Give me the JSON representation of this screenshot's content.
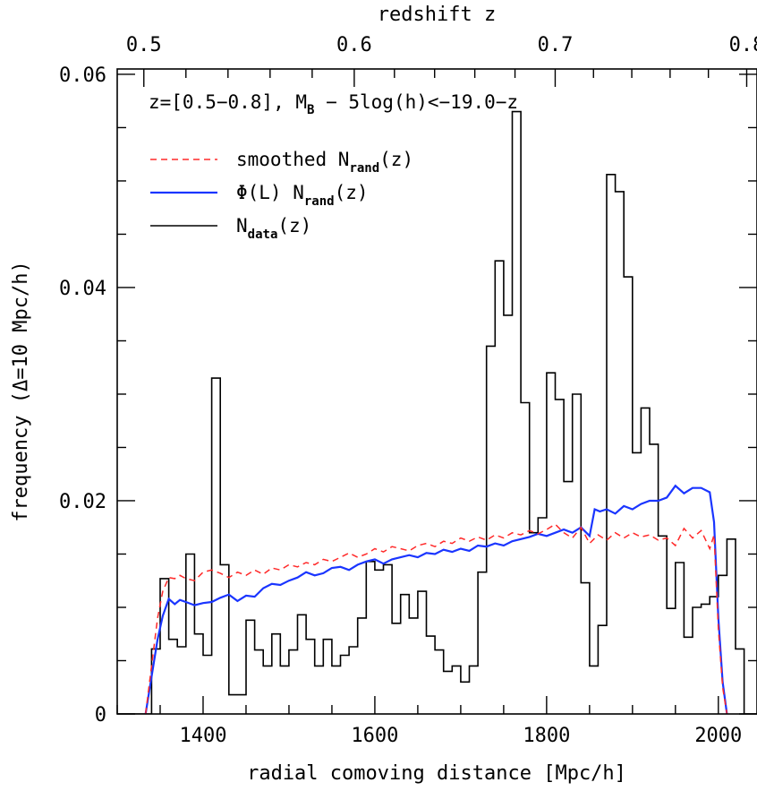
{
  "chart_data": {
    "type": "line",
    "xlabel": "radial comoving distance [Mpc/h]",
    "ylabel": "frequency (Δ=10 Mpc/h)",
    "top_xlabel": "redshift z",
    "xlim": [
      1300,
      2045
    ],
    "ylim": [
      0,
      0.0605
    ],
    "x_ticks": [
      1400,
      1600,
      1800,
      2000
    ],
    "y_ticks": [
      0,
      0.02,
      0.04,
      0.06
    ],
    "y_tick_labels": [
      "0",
      "0.02",
      "0.04",
      "0.06"
    ],
    "top_ticks": [
      {
        "z": 0.5,
        "d": 1331,
        "label": "0.5"
      },
      {
        "z": 0.6,
        "d": 1576,
        "label": "0.6"
      },
      {
        "z": 0.7,
        "d": 1810,
        "label": "0.7"
      },
      {
        "z": 0.8,
        "d": 2033,
        "label": "0.8"
      }
    ],
    "annotation": {
      "part1": "z=[0.5−0.8], M",
      "part1_sub": "B",
      "part2": " − 5log(h)<−19.0−z"
    },
    "legend": [
      {
        "text": "smoothed N",
        "sub": "rand",
        "suffix": "(z)",
        "color": "#ff2a2a",
        "style": "dashed"
      },
      {
        "text": "Φ(L) N",
        "sub": "rand",
        "suffix": "(z)",
        "color": "#1a35ff",
        "style": "solid"
      },
      {
        "text": "N",
        "sub": "data",
        "suffix": "(z)",
        "color": "#000000",
        "style": "solid"
      }
    ],
    "series": [
      {
        "id": "ndata",
        "kind": "step",
        "color": "#000000",
        "bin_start": 1330,
        "bin_width": 10,
        "values": [
          0.0,
          0.0061,
          0.0127,
          0.007,
          0.0063,
          0.015,
          0.0075,
          0.0055,
          0.0315,
          0.014,
          0.0018,
          0.0018,
          0.0088,
          0.006,
          0.0045,
          0.0075,
          0.0045,
          0.006,
          0.0093,
          0.007,
          0.0045,
          0.007,
          0.0045,
          0.0055,
          0.0063,
          0.009,
          0.0143,
          0.0135,
          0.014,
          0.0085,
          0.0112,
          0.009,
          0.0115,
          0.0073,
          0.006,
          0.004,
          0.0045,
          0.003,
          0.0045,
          0.0133,
          0.0345,
          0.0425,
          0.0374,
          0.0565,
          0.0292,
          0.017,
          0.0184,
          0.032,
          0.0295,
          0.0218,
          0.03,
          0.0123,
          0.0045,
          0.0083,
          0.0506,
          0.049,
          0.041,
          0.0245,
          0.0287,
          0.0253,
          0.0167,
          0.0099,
          0.0142,
          0.0072,
          0.01,
          0.0103,
          0.011,
          0.013,
          0.0164,
          0.0061,
          0.0
        ]
      },
      {
        "id": "phi",
        "kind": "line",
        "color": "#1a35ff",
        "x": [
          1333,
          1340,
          1347,
          1353,
          1360,
          1367,
          1373,
          1380,
          1390,
          1400,
          1410,
          1420,
          1430,
          1440,
          1450,
          1460,
          1470,
          1480,
          1490,
          1500,
          1510,
          1520,
          1530,
          1540,
          1550,
          1560,
          1570,
          1580,
          1590,
          1600,
          1610,
          1620,
          1630,
          1640,
          1650,
          1660,
          1670,
          1680,
          1690,
          1700,
          1710,
          1720,
          1730,
          1740,
          1750,
          1760,
          1770,
          1780,
          1790,
          1800,
          1810,
          1820,
          1830,
          1840,
          1850,
          1856,
          1862,
          1870,
          1880,
          1890,
          1900,
          1910,
          1920,
          1930,
          1940,
          1950,
          1960,
          1970,
          1980,
          1990,
          1995,
          2000,
          2005,
          2010
        ],
        "y": [
          0.0,
          0.0035,
          0.007,
          0.0092,
          0.0108,
          0.0103,
          0.0107,
          0.0105,
          0.0102,
          0.0104,
          0.0105,
          0.0109,
          0.0112,
          0.0106,
          0.0111,
          0.011,
          0.0118,
          0.0122,
          0.0121,
          0.0125,
          0.0128,
          0.0133,
          0.013,
          0.0132,
          0.0137,
          0.0138,
          0.0135,
          0.014,
          0.0143,
          0.0145,
          0.0141,
          0.0145,
          0.0147,
          0.0149,
          0.0147,
          0.0151,
          0.015,
          0.0154,
          0.0152,
          0.0155,
          0.0153,
          0.0158,
          0.0157,
          0.016,
          0.0158,
          0.0162,
          0.0164,
          0.0166,
          0.0169,
          0.0167,
          0.017,
          0.0173,
          0.017,
          0.0175,
          0.0167,
          0.0192,
          0.019,
          0.0192,
          0.0188,
          0.0195,
          0.0192,
          0.0197,
          0.02,
          0.02,
          0.0203,
          0.0214,
          0.0207,
          0.0212,
          0.0212,
          0.0208,
          0.018,
          0.009,
          0.003,
          0.0
        ]
      },
      {
        "id": "smoothed",
        "kind": "line",
        "color": "#ff2a2a",
        "x": [
          1333,
          1340,
          1347,
          1353,
          1360,
          1367,
          1373,
          1380,
          1390,
          1400,
          1410,
          1420,
          1430,
          1440,
          1450,
          1460,
          1470,
          1480,
          1490,
          1500,
          1510,
          1520,
          1530,
          1540,
          1550,
          1560,
          1570,
          1580,
          1590,
          1600,
          1610,
          1620,
          1630,
          1640,
          1650,
          1660,
          1670,
          1680,
          1690,
          1700,
          1710,
          1720,
          1730,
          1740,
          1750,
          1760,
          1770,
          1780,
          1790,
          1800,
          1810,
          1820,
          1830,
          1840,
          1850,
          1860,
          1870,
          1880,
          1890,
          1900,
          1910,
          1920,
          1930,
          1940,
          1950,
          1960,
          1970,
          1980,
          1990,
          1995,
          2000,
          2005,
          2010
        ],
        "y": [
          0.0,
          0.0045,
          0.009,
          0.0115,
          0.0128,
          0.0127,
          0.013,
          0.0127,
          0.0125,
          0.0133,
          0.0135,
          0.0132,
          0.0128,
          0.0133,
          0.013,
          0.0135,
          0.0131,
          0.0137,
          0.0135,
          0.014,
          0.0138,
          0.0142,
          0.014,
          0.0145,
          0.0143,
          0.0147,
          0.0151,
          0.0147,
          0.015,
          0.0155,
          0.0152,
          0.0157,
          0.0155,
          0.0153,
          0.0158,
          0.016,
          0.0157,
          0.0162,
          0.016,
          0.0165,
          0.0162,
          0.0166,
          0.0163,
          0.0168,
          0.0165,
          0.017,
          0.0168,
          0.0172,
          0.0169,
          0.0173,
          0.0178,
          0.017,
          0.0165,
          0.0175,
          0.016,
          0.0168,
          0.0163,
          0.017,
          0.0165,
          0.017,
          0.0166,
          0.0168,
          0.0163,
          0.0165,
          0.0158,
          0.0174,
          0.0165,
          0.0172,
          0.0155,
          0.0168,
          0.008,
          0.0025,
          0.0
        ]
      }
    ]
  }
}
